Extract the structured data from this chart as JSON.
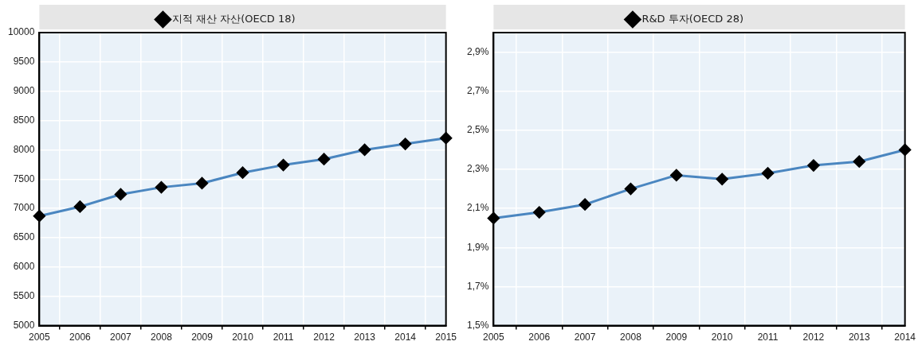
{
  "chart_data": [
    {
      "type": "line",
      "categories": [
        "2005",
        "2006",
        "2007",
        "2008",
        "2009",
        "2010",
        "2011",
        "2012",
        "2013",
        "2014",
        "2015"
      ],
      "series": [
        {
          "name": "지적 재산 자산(OECD 18)",
          "color": "#4a86c0",
          "values": [
            6870,
            7030,
            7240,
            7360,
            7430,
            7610,
            7740,
            7840,
            8000,
            8100,
            8200
          ]
        }
      ],
      "ylim": [
        5000,
        10000
      ],
      "yticks": [
        5000,
        5500,
        6000,
        6500,
        7000,
        7500,
        8000,
        8500,
        9000,
        9500,
        10000
      ],
      "grid": true,
      "legend": "top",
      "marker": "diamond",
      "line_style": "solid"
    },
    {
      "type": "line",
      "categories": [
        "2005",
        "2006",
        "2007",
        "2008",
        "2009",
        "2010",
        "2011",
        "2012",
        "2013",
        "2014"
      ],
      "series": [
        {
          "name": "R&D 투자(OECD 28)",
          "color": "#4a86c0",
          "values": [
            2.05,
            2.08,
            2.12,
            2.2,
            2.27,
            2.25,
            2.28,
            2.32,
            2.34,
            2.4
          ]
        }
      ],
      "ylim": [
        1.5,
        3.0
      ],
      "yticks": [
        {
          "value": 1.5,
          "label": "1,5%"
        },
        {
          "value": 1.7,
          "label": "1,7%"
        },
        {
          "value": 1.9,
          "label": "1,9%"
        },
        {
          "value": 2.1,
          "label": "2,1%"
        },
        {
          "value": 2.3,
          "label": "2,3%"
        },
        {
          "value": 2.5,
          "label": "2,5%"
        },
        {
          "value": 2.7,
          "label": "2,7%"
        },
        {
          "value": 2.9,
          "label": "2,9%"
        }
      ],
      "grid": true,
      "legend": "top",
      "marker": "diamond",
      "line_style": "solid"
    }
  ]
}
